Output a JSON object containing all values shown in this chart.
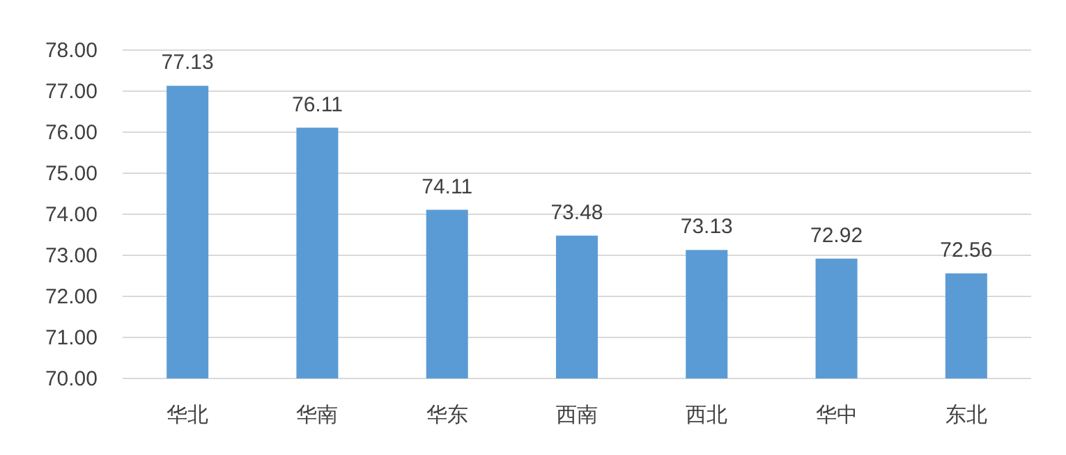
{
  "chart_data": {
    "type": "bar",
    "categories": [
      "华北",
      "华南",
      "华东",
      "西南",
      "西北",
      "华中",
      "东北"
    ],
    "values": [
      77.13,
      76.11,
      74.11,
      73.48,
      73.13,
      72.92,
      72.56
    ],
    "value_labels": [
      "77.13",
      "76.11",
      "74.11",
      "73.48",
      "73.13",
      "72.92",
      "72.56"
    ],
    "color": "#5b9bd5",
    "ylim": [
      70,
      78
    ],
    "yticks": [
      {
        "value": 70,
        "label": "70.00"
      },
      {
        "value": 71,
        "label": "71.00"
      },
      {
        "value": 72,
        "label": "72.00"
      },
      {
        "value": 73,
        "label": "73.00"
      },
      {
        "value": 74,
        "label": "74.00"
      },
      {
        "value": 75,
        "label": "75.00"
      },
      {
        "value": 76,
        "label": "76.00"
      },
      {
        "value": 77,
        "label": "77.00"
      },
      {
        "value": 78,
        "label": "78.00"
      }
    ],
    "grid": "y"
  }
}
